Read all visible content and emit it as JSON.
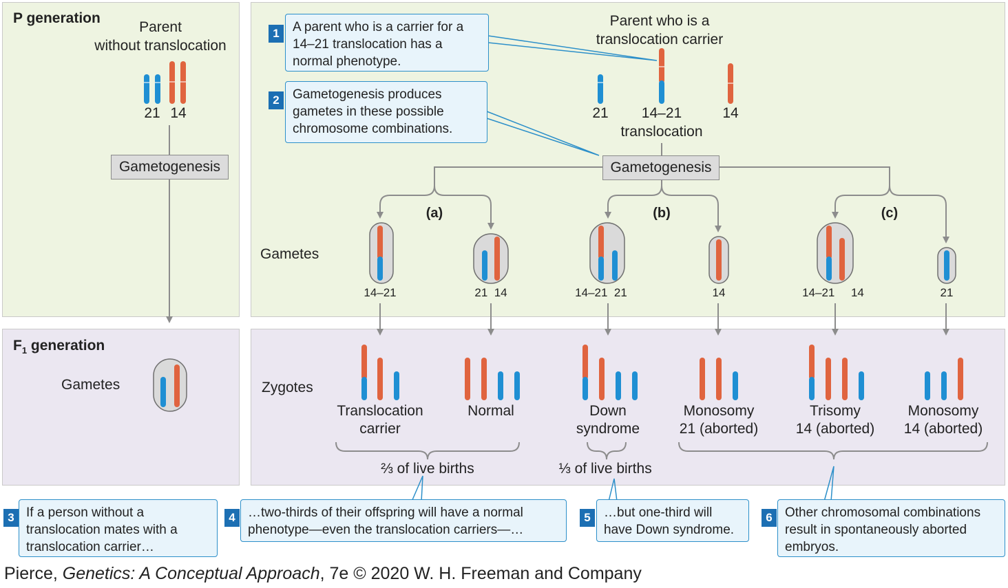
{
  "p_generation": {
    "title": "P generation",
    "parent1_label_line1": "Parent",
    "parent1_label_line2": "without translocation",
    "parent1_chrom_labels": [
      "21",
      "14"
    ],
    "gametogenesis": "Gametogenesis",
    "parent2_label_line1": "Parent who is a",
    "parent2_label_line2": "translocation carrier",
    "parent2_chrom_labels": [
      "21",
      "14–21",
      "14"
    ],
    "parent2_translocation_word": "translocation"
  },
  "f1_generation": {
    "title": "F",
    "title_sub": "1",
    "title_rest": " generation",
    "gametes_label": "Gametes"
  },
  "gametes_row_label": "Gametes",
  "zygotes_row_label": "Zygotes",
  "groups": [
    "(a)",
    "(b)",
    "(c)"
  ],
  "gametes": [
    {
      "label": "14–21"
    },
    {
      "label": "21  14"
    },
    {
      "label": "14–21  21"
    },
    {
      "label": "14"
    },
    {
      "label": "14–21     14"
    },
    {
      "label": "21"
    }
  ],
  "zygotes": [
    {
      "line1": "Translocation",
      "line2": "carrier"
    },
    {
      "line1": "Normal",
      "line2": ""
    },
    {
      "line1": "Down",
      "line2": "syndrome"
    },
    {
      "line1": "Monosomy",
      "line2": "21 (aborted)"
    },
    {
      "line1": "Trisomy",
      "line2": "14 (aborted)"
    },
    {
      "line1": "Monosomy",
      "line2": "14 (aborted)"
    }
  ],
  "fractions": {
    "two_thirds": "⅔ of live births",
    "one_third": "⅓ of live births"
  },
  "callouts": [
    {
      "num": "1",
      "lines": [
        "A parent who is a carrier for a",
        "14–21 translocation has a",
        "normal phenotype."
      ]
    },
    {
      "num": "2",
      "lines": [
        "Gametogenesis produces",
        "gametes in these possible",
        "chromosome combinations."
      ]
    },
    {
      "num": "3",
      "lines": [
        "If a person without a",
        "translocation mates with a",
        "translocation carrier…"
      ]
    },
    {
      "num": "4",
      "lines": [
        "…two-thirds of their offspring will have a normal",
        "phenotype—even the translocation carriers—…"
      ]
    },
    {
      "num": "5",
      "lines": [
        "…but one-third will",
        "have Down syndrome."
      ]
    },
    {
      "num": "6",
      "lines": [
        "Other chromosomal combinations",
        "result in spontaneously aborted",
        "embryos."
      ]
    }
  ],
  "credit": {
    "pre": "Pierce, ",
    "title": "Genetics: A Conceptual Approach",
    "post": ", 7e © 2020 W. H. Freeman and Company"
  },
  "colors": {
    "blue": "#1f8fd3",
    "red": "#e0643f",
    "gray_line": "#8c8c8c",
    "callout_blue": "#2c8fc9"
  }
}
